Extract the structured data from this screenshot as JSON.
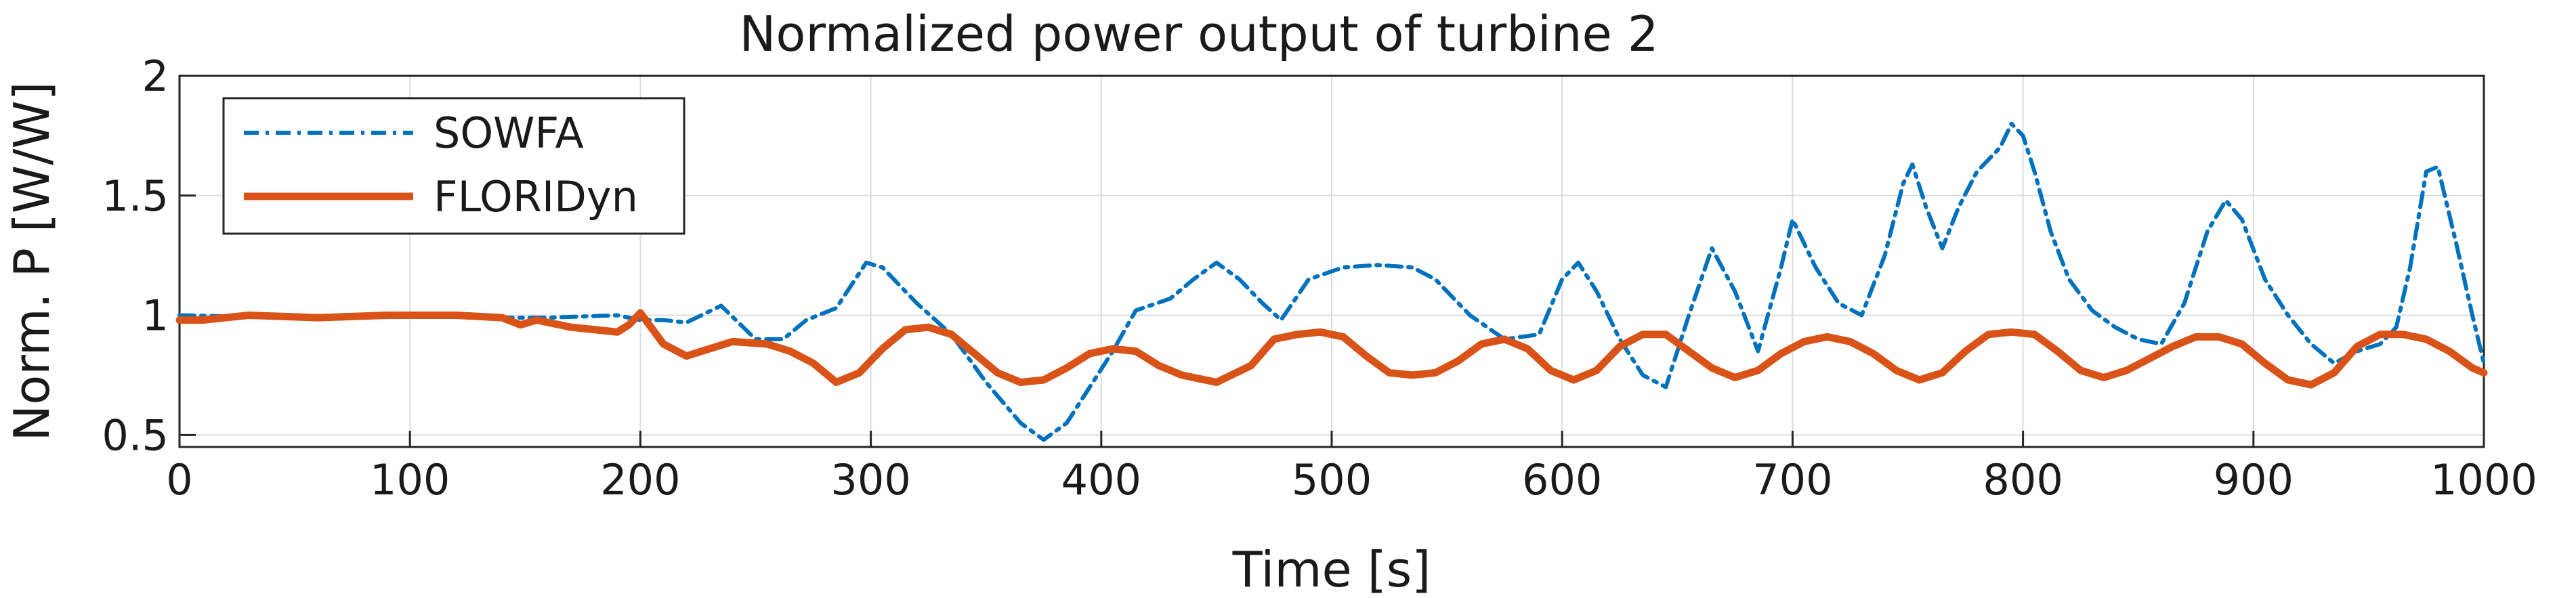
{
  "chart_data": {
    "type": "line",
    "title": "Normalized power output of turbine 2",
    "xlabel": "Time [s]",
    "ylabel": "Norm. P [W/W]",
    "xlim": [
      0,
      1000
    ],
    "ylim": [
      0.45,
      2.0
    ],
    "xticks": [
      0,
      100,
      200,
      300,
      400,
      500,
      600,
      700,
      800,
      900,
      1000
    ],
    "yticks": [
      0.5,
      1,
      1.5,
      2
    ],
    "xtick_labels": [
      "0",
      "100",
      "200",
      "300",
      "400",
      "500",
      "600",
      "700",
      "800",
      "900",
      "1000"
    ],
    "ytick_labels": [
      "0.5",
      "1",
      "1.5",
      "2"
    ],
    "grid": true,
    "legend_position": "top-left",
    "series": [
      {
        "name": "SOWFA",
        "color": "#0072bd",
        "style": "dash-dot",
        "x": [
          0,
          50,
          100,
          130,
          160,
          190,
          200,
          210,
          220,
          235,
          250,
          262,
          272,
          285,
          298,
          305,
          320,
          335,
          350,
          365,
          375,
          385,
          395,
          405,
          415,
          430,
          440,
          450,
          460,
          470,
          478,
          490,
          505,
          520,
          535,
          545,
          560,
          575,
          590,
          600,
          607,
          615,
          625,
          635,
          645,
          655,
          665,
          675,
          685,
          695,
          700,
          710,
          720,
          730,
          740,
          748,
          752,
          758,
          765,
          772,
          780,
          790,
          795,
          800,
          805,
          812,
          820,
          830,
          840,
          850,
          860,
          870,
          880,
          888,
          895,
          905,
          915,
          925,
          935,
          945,
          955,
          962,
          968,
          975,
          980,
          988,
          995,
          1000
        ],
        "y": [
          1.0,
          0.99,
          1.0,
          0.99,
          0.99,
          1.0,
          0.98,
          0.98,
          0.97,
          1.04,
          0.9,
          0.9,
          0.98,
          1.03,
          1.22,
          1.2,
          1.05,
          0.92,
          0.72,
          0.55,
          0.48,
          0.55,
          0.7,
          0.85,
          1.02,
          1.07,
          1.15,
          1.22,
          1.15,
          1.05,
          0.98,
          1.15,
          1.2,
          1.21,
          1.2,
          1.15,
          1.0,
          0.9,
          0.92,
          1.15,
          1.22,
          1.1,
          0.9,
          0.75,
          0.7,
          1.0,
          1.28,
          1.1,
          0.85,
          1.2,
          1.4,
          1.2,
          1.05,
          1.0,
          1.25,
          1.55,
          1.63,
          1.45,
          1.28,
          1.45,
          1.6,
          1.7,
          1.8,
          1.75,
          1.6,
          1.35,
          1.15,
          1.02,
          0.95,
          0.9,
          0.88,
          1.05,
          1.35,
          1.48,
          1.4,
          1.15,
          1.0,
          0.88,
          0.8,
          0.85,
          0.88,
          0.95,
          1.2,
          1.6,
          1.62,
          1.3,
          1.0,
          0.8
        ]
      },
      {
        "name": "FLORIDyn",
        "color": "#d95319",
        "style": "solid",
        "x": [
          0,
          10,
          30,
          60,
          90,
          120,
          140,
          148,
          155,
          170,
          190,
          195,
          200,
          210,
          220,
          240,
          255,
          265,
          275,
          285,
          295,
          305,
          315,
          325,
          335,
          345,
          355,
          365,
          375,
          385,
          395,
          405,
          415,
          425,
          435,
          450,
          465,
          475,
          485,
          495,
          505,
          515,
          525,
          535,
          545,
          555,
          565,
          575,
          585,
          595,
          605,
          615,
          625,
          635,
          645,
          655,
          665,
          675,
          685,
          695,
          705,
          715,
          725,
          735,
          745,
          755,
          765,
          775,
          785,
          795,
          805,
          815,
          825,
          835,
          845,
          855,
          865,
          875,
          885,
          895,
          905,
          915,
          925,
          935,
          945,
          955,
          965,
          975,
          985,
          995,
          1000
        ],
        "y": [
          0.98,
          0.98,
          1.0,
          0.99,
          1.0,
          1.0,
          0.99,
          0.96,
          0.98,
          0.95,
          0.93,
          0.96,
          1.01,
          0.88,
          0.83,
          0.89,
          0.88,
          0.85,
          0.8,
          0.72,
          0.76,
          0.86,
          0.94,
          0.95,
          0.92,
          0.84,
          0.76,
          0.72,
          0.73,
          0.78,
          0.84,
          0.86,
          0.85,
          0.79,
          0.75,
          0.72,
          0.79,
          0.9,
          0.92,
          0.93,
          0.91,
          0.83,
          0.76,
          0.75,
          0.76,
          0.81,
          0.88,
          0.9,
          0.86,
          0.77,
          0.73,
          0.77,
          0.87,
          0.92,
          0.92,
          0.85,
          0.78,
          0.74,
          0.77,
          0.84,
          0.89,
          0.91,
          0.89,
          0.84,
          0.77,
          0.73,
          0.76,
          0.85,
          0.92,
          0.93,
          0.92,
          0.85,
          0.77,
          0.74,
          0.77,
          0.82,
          0.87,
          0.91,
          0.91,
          0.88,
          0.8,
          0.73,
          0.71,
          0.76,
          0.87,
          0.92,
          0.92,
          0.9,
          0.85,
          0.78,
          0.76
        ]
      }
    ]
  }
}
